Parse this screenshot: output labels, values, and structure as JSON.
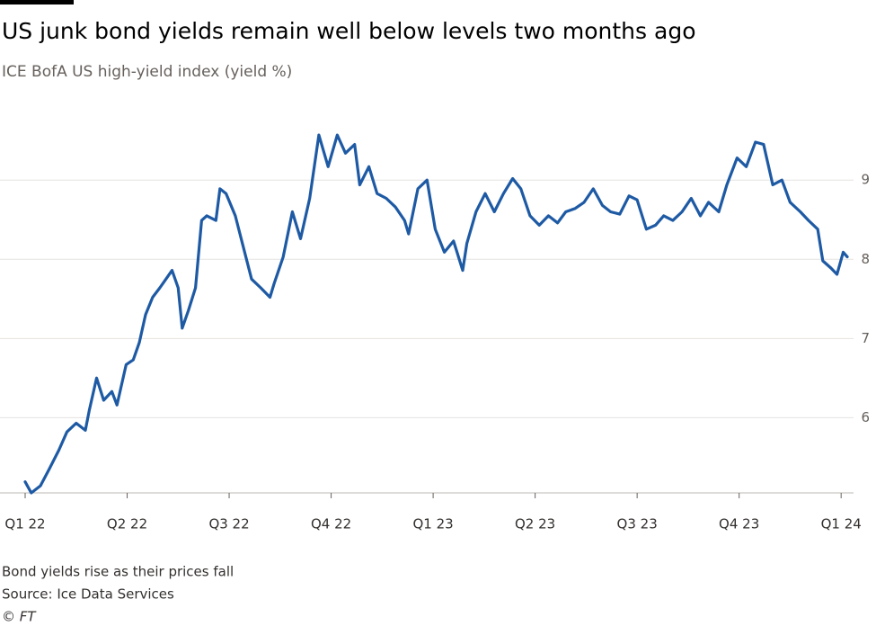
{
  "chart_data": {
    "type": "line",
    "title": "US junk bond yields remain well below levels two months ago",
    "subtitle": "ICE BofA US high-yield index (yield %)",
    "note": "Bond yields rise as their prices fall",
    "source": "Source: Ice Data Services",
    "credit": "© FT",
    "xlim": [
      0,
      8.06
    ],
    "xticks": [
      {
        "value": 0,
        "label": "Q1 22"
      },
      {
        "value": 1,
        "label": "Q2 22"
      },
      {
        "value": 2,
        "label": "Q3 22"
      },
      {
        "value": 3,
        "label": "Q4 22"
      },
      {
        "value": 4,
        "label": "Q1 23"
      },
      {
        "value": 5,
        "label": "Q2 23"
      },
      {
        "value": 6,
        "label": "Q3 23"
      },
      {
        "value": 7,
        "label": "Q4 23"
      },
      {
        "value": 8,
        "label": "Q1 24"
      }
    ],
    "ylim": [
      5.05,
      9.9
    ],
    "yticks": [
      6,
      7,
      8,
      9
    ],
    "grid": true,
    "series": [
      {
        "color": "#1e5aa4",
        "x": [
          0,
          0.06,
          0.15,
          0.24,
          0.33,
          0.41,
          0.5,
          0.59,
          0.63,
          0.7,
          0.77,
          0.85,
          0.9,
          0.99,
          1.06,
          1.12,
          1.18,
          1.25,
          1.32,
          1.38,
          1.44,
          1.5,
          1.54,
          1.6,
          1.67,
          1.73,
          1.78,
          1.87,
          1.91,
          1.97,
          2.06,
          2.13,
          2.22,
          2.31,
          2.4,
          2.44,
          2.53,
          2.62,
          2.7,
          2.79,
          2.88,
          2.97,
          3.06,
          3.14,
          3.23,
          3.28,
          3.37,
          3.45,
          3.54,
          3.63,
          3.72,
          3.76,
          3.85,
          3.94,
          4.02,
          4.11,
          4.2,
          4.29,
          4.33,
          4.42,
          4.51,
          4.6,
          4.69,
          4.78,
          4.86,
          4.95,
          5.04,
          5.13,
          5.22,
          5.3,
          5.39,
          5.48,
          5.57,
          5.66,
          5.74,
          5.83,
          5.92,
          6.0,
          6.09,
          6.18,
          6.26,
          6.35,
          6.44,
          6.53,
          6.62,
          6.7,
          6.8,
          6.88,
          6.98,
          7.07,
          7.16,
          7.24,
          7.33,
          7.42,
          7.5,
          7.6,
          7.68,
          7.77,
          7.82,
          7.9,
          7.96,
          8.02,
          8.06
        ],
        "values": [
          5.19,
          5.05,
          5.14,
          5.36,
          5.59,
          5.82,
          5.93,
          5.84,
          6.1,
          6.5,
          6.22,
          6.33,
          6.16,
          6.67,
          6.73,
          6.95,
          7.3,
          7.52,
          7.64,
          7.75,
          7.86,
          7.64,
          7.13,
          7.35,
          7.64,
          8.49,
          8.55,
          8.49,
          8.89,
          8.83,
          8.55,
          8.2,
          7.75,
          7.64,
          7.52,
          7.69,
          8.03,
          8.6,
          8.26,
          8.77,
          9.57,
          9.17,
          9.57,
          9.34,
          9.45,
          8.94,
          9.17,
          8.83,
          8.77,
          8.66,
          8.49,
          8.32,
          8.89,
          9.0,
          8.38,
          8.09,
          8.23,
          7.86,
          8.2,
          8.6,
          8.83,
          8.6,
          8.83,
          9.02,
          8.89,
          8.55,
          8.43,
          8.55,
          8.46,
          8.6,
          8.64,
          8.72,
          8.89,
          8.68,
          8.6,
          8.57,
          8.8,
          8.75,
          8.38,
          8.43,
          8.55,
          8.49,
          8.6,
          8.77,
          8.55,
          8.72,
          8.6,
          8.94,
          9.28,
          9.17,
          9.48,
          9.45,
          8.94,
          9.0,
          8.72,
          8.6,
          8.49,
          8.38,
          7.98,
          7.89,
          7.81,
          8.09,
          8.03
        ]
      }
    ]
  }
}
